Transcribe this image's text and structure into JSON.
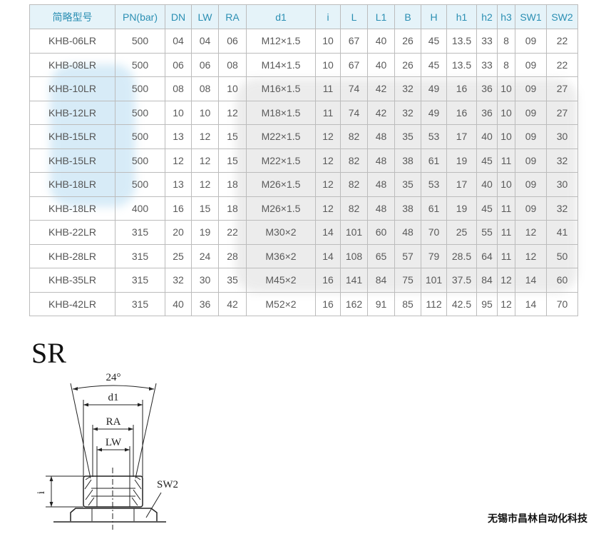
{
  "table": {
    "headers": [
      "简略型号",
      "PN(bar)",
      "DN",
      "LW",
      "RA",
      "d1",
      "i",
      "L",
      "L1",
      "B",
      "H",
      "h1",
      "h2",
      "h3",
      "SW1",
      "SW2"
    ],
    "rows": [
      [
        "KHB-06LR",
        "500",
        "04",
        "04",
        "06",
        "M12×1.5",
        "10",
        "67",
        "40",
        "26",
        "45",
        "13.5",
        "33",
        "8",
        "09",
        "22"
      ],
      [
        "KHB-08LR",
        "500",
        "06",
        "06",
        "08",
        "M14×1.5",
        "10",
        "67",
        "40",
        "26",
        "45",
        "13.5",
        "33",
        "8",
        "09",
        "22"
      ],
      [
        "KHB-10LR",
        "500",
        "08",
        "08",
        "10",
        "M16×1.5",
        "11",
        "74",
        "42",
        "32",
        "49",
        "16",
        "36",
        "10",
        "09",
        "27"
      ],
      [
        "KHB-12LR",
        "500",
        "10",
        "10",
        "12",
        "M18×1.5",
        "11",
        "74",
        "42",
        "32",
        "49",
        "16",
        "36",
        "10",
        "09",
        "27"
      ],
      [
        "KHB-15LR",
        "500",
        "13",
        "12",
        "15",
        "M22×1.5",
        "12",
        "82",
        "48",
        "35",
        "53",
        "17",
        "40",
        "10",
        "09",
        "30"
      ],
      [
        "KHB-15LR",
        "500",
        "12",
        "12",
        "15",
        "M22×1.5",
        "12",
        "82",
        "48",
        "38",
        "61",
        "19",
        "45",
        "11",
        "09",
        "32"
      ],
      [
        "KHB-18LR",
        "500",
        "13",
        "12",
        "18",
        "M26×1.5",
        "12",
        "82",
        "48",
        "35",
        "53",
        "17",
        "40",
        "10",
        "09",
        "30"
      ],
      [
        "KHB-18LR",
        "400",
        "16",
        "15",
        "18",
        "M26×1.5",
        "12",
        "82",
        "48",
        "38",
        "61",
        "19",
        "45",
        "11",
        "09",
        "32"
      ],
      [
        "KHB-22LR",
        "315",
        "20",
        "19",
        "22",
        "M30×2",
        "14",
        "101",
        "60",
        "48",
        "70",
        "25",
        "55",
        "11",
        "12",
        "41"
      ],
      [
        "KHB-28LR",
        "315",
        "25",
        "24",
        "28",
        "M36×2",
        "14",
        "108",
        "65",
        "57",
        "79",
        "28.5",
        "64",
        "11",
        "12",
        "50"
      ],
      [
        "KHB-35LR",
        "315",
        "32",
        "30",
        "35",
        "M45×2",
        "16",
        "141",
        "84",
        "75",
        "101",
        "37.5",
        "84",
        "12",
        "14",
        "60"
      ],
      [
        "KHB-42LR",
        "315",
        "40",
        "36",
        "42",
        "M52×2",
        "16",
        "162",
        "91",
        "85",
        "112",
        "42.5",
        "95",
        "12",
        "14",
        "70"
      ]
    ]
  },
  "diagram": {
    "title": "SR",
    "angle_label": "24°",
    "d1_label": "d1",
    "ra_label": "RA",
    "lw_label": "LW",
    "i_label": "i",
    "sw2_label": "SW2"
  },
  "footer": {
    "company": "无锡市昌林自动化科技"
  },
  "colors": {
    "header_bg": "#e5f3f9",
    "header_text": "#2b8fb3",
    "border": "#bcbcbc"
  }
}
